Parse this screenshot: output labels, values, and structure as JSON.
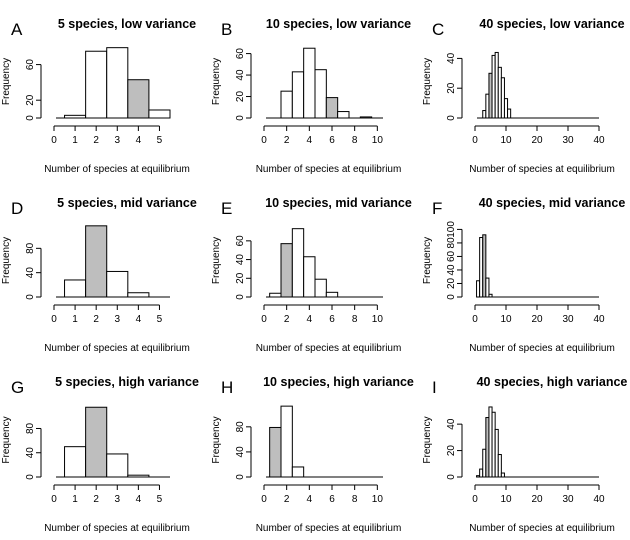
{
  "colors": {
    "bar_default": "#ffffff",
    "bar_highlight": "#bebebe",
    "stroke": "#000000"
  },
  "chart_data": [
    {
      "type": "bar",
      "letter": "A",
      "title": "5 species, low variance",
      "xlabel": "Number of species at equilibrium",
      "ylabel": "Frequency",
      "xlim": [
        0,
        5.5
      ],
      "ylim": [
        0,
        82
      ],
      "xticks": [
        0,
        1,
        2,
        3,
        4,
        5
      ],
      "yticks": [
        0,
        20,
        60
      ],
      "bin_width": 1,
      "bin_centers": [
        1,
        2,
        3,
        4,
        5
      ],
      "values": [
        3,
        75,
        79,
        43,
        9
      ],
      "highlight_bin": 4
    },
    {
      "type": "bar",
      "letter": "B",
      "title": "10 species, low variance",
      "xlabel": "Number of species at equilibrium",
      "ylabel": "Frequency",
      "xlim": [
        0,
        10.5
      ],
      "ylim": [
        0,
        68
      ],
      "xticks": [
        0,
        2,
        4,
        6,
        8,
        10
      ],
      "yticks": [
        0,
        20,
        40,
        60
      ],
      "bin_width": 1,
      "bin_centers": [
        1,
        2,
        3,
        4,
        5,
        6,
        7,
        8,
        9,
        10
      ],
      "values": [
        0,
        25,
        43,
        65,
        45,
        19,
        6,
        0,
        1,
        0
      ],
      "highlight_bin": 6
    },
    {
      "type": "bar",
      "letter": "C",
      "title": "40 species, low variance",
      "xlabel": "Number of species at equilibrium",
      "ylabel": "Frequency",
      "xlim": [
        0,
        40
      ],
      "ylim": [
        0,
        49
      ],
      "xticks": [
        0,
        10,
        20,
        30,
        40
      ],
      "yticks": [
        0,
        20,
        40
      ],
      "bin_width": 1,
      "bin_centers": [
        3,
        4,
        5,
        6,
        7,
        8,
        9,
        10,
        11
      ],
      "values": [
        5,
        16,
        30,
        42,
        44,
        34,
        27,
        13,
        6
      ],
      "highlight_bin": 5
    },
    {
      "type": "bar",
      "letter": "D",
      "title": "5 species, mid variance",
      "xlabel": "Number of species at equilibrium",
      "ylabel": "Frequency",
      "xlim": [
        0,
        5.5
      ],
      "ylim": [
        0,
        120
      ],
      "xticks": [
        0,
        1,
        2,
        3,
        4,
        5
      ],
      "yticks": [
        0,
        40,
        80
      ],
      "bin_width": 1,
      "bin_centers": [
        1,
        2,
        3,
        4,
        5
      ],
      "values": [
        28,
        117,
        42,
        7,
        0
      ],
      "highlight_bin": 2
    },
    {
      "type": "bar",
      "letter": "E",
      "title": "10 species, mid variance",
      "xlabel": "Number of species at equilibrium",
      "ylabel": "Frequency",
      "xlim": [
        0,
        10.5
      ],
      "ylim": [
        0,
        78
      ],
      "xticks": [
        0,
        2,
        4,
        6,
        8,
        10
      ],
      "yticks": [
        0,
        20,
        40,
        60
      ],
      "bin_width": 1,
      "bin_centers": [
        1,
        2,
        3,
        4,
        5,
        6,
        7,
        8,
        9,
        10
      ],
      "values": [
        4,
        57,
        73,
        43,
        19,
        5,
        0,
        0,
        0,
        0
      ],
      "highlight_bin": 2
    },
    {
      "type": "bar",
      "letter": "F",
      "title": "40 species, mid variance",
      "xlabel": "Number of species at equilibrium",
      "ylabel": "Frequency",
      "xlim": [
        0,
        40
      ],
      "ylim": [
        0,
        108
      ],
      "xticks": [
        0,
        10,
        20,
        30,
        40
      ],
      "yticks": [
        0,
        20,
        40,
        60,
        80,
        100
      ],
      "bin_width": 1,
      "bin_centers": [
        1,
        2,
        3,
        4,
        5
      ],
      "values": [
        24,
        88,
        92,
        28,
        4
      ],
      "highlight_bin": 3
    },
    {
      "type": "bar",
      "letter": "G",
      "title": "5 species, high variance",
      "xlabel": "Number of species at equilibrium",
      "ylabel": "Frequency",
      "xlim": [
        0,
        5.5
      ],
      "ylim": [
        0,
        122
      ],
      "xticks": [
        0,
        1,
        2,
        3,
        4,
        5
      ],
      "yticks": [
        0,
        40,
        80
      ],
      "bin_width": 1,
      "bin_centers": [
        1,
        2,
        3,
        4,
        5
      ],
      "values": [
        50,
        115,
        38,
        3,
        0
      ],
      "highlight_bin": 2
    },
    {
      "type": "bar",
      "letter": "H",
      "title": "10 species, high variance",
      "xlabel": "Number of species at equilibrium",
      "ylabel": "Frequency",
      "xlim": [
        0,
        10.5
      ],
      "ylim": [
        0,
        118
      ],
      "xticks": [
        0,
        2,
        4,
        6,
        8,
        10
      ],
      "yticks": [
        0,
        40,
        80
      ],
      "bin_width": 1,
      "bin_centers": [
        1,
        2,
        3,
        4,
        5,
        6,
        7,
        8,
        9,
        10
      ],
      "values": [
        79,
        113,
        16,
        0,
        0,
        0,
        0,
        0,
        0,
        0
      ],
      "highlight_bin": 1
    },
    {
      "type": "bar",
      "letter": "I",
      "title": "40 species, high variance",
      "xlabel": "Number of species at equilibrium",
      "ylabel": "Frequency",
      "xlim": [
        0,
        40
      ],
      "ylim": [
        0,
        56
      ],
      "xticks": [
        0,
        10,
        20,
        30,
        40
      ],
      "yticks": [
        0,
        20,
        40
      ],
      "bin_width": 1,
      "bin_centers": [
        1,
        2,
        3,
        4,
        5,
        6,
        7,
        8,
        9
      ],
      "values": [
        1,
        6,
        21,
        45,
        53,
        49,
        36,
        17,
        3
      ],
      "highlight_bin": 4
    }
  ]
}
